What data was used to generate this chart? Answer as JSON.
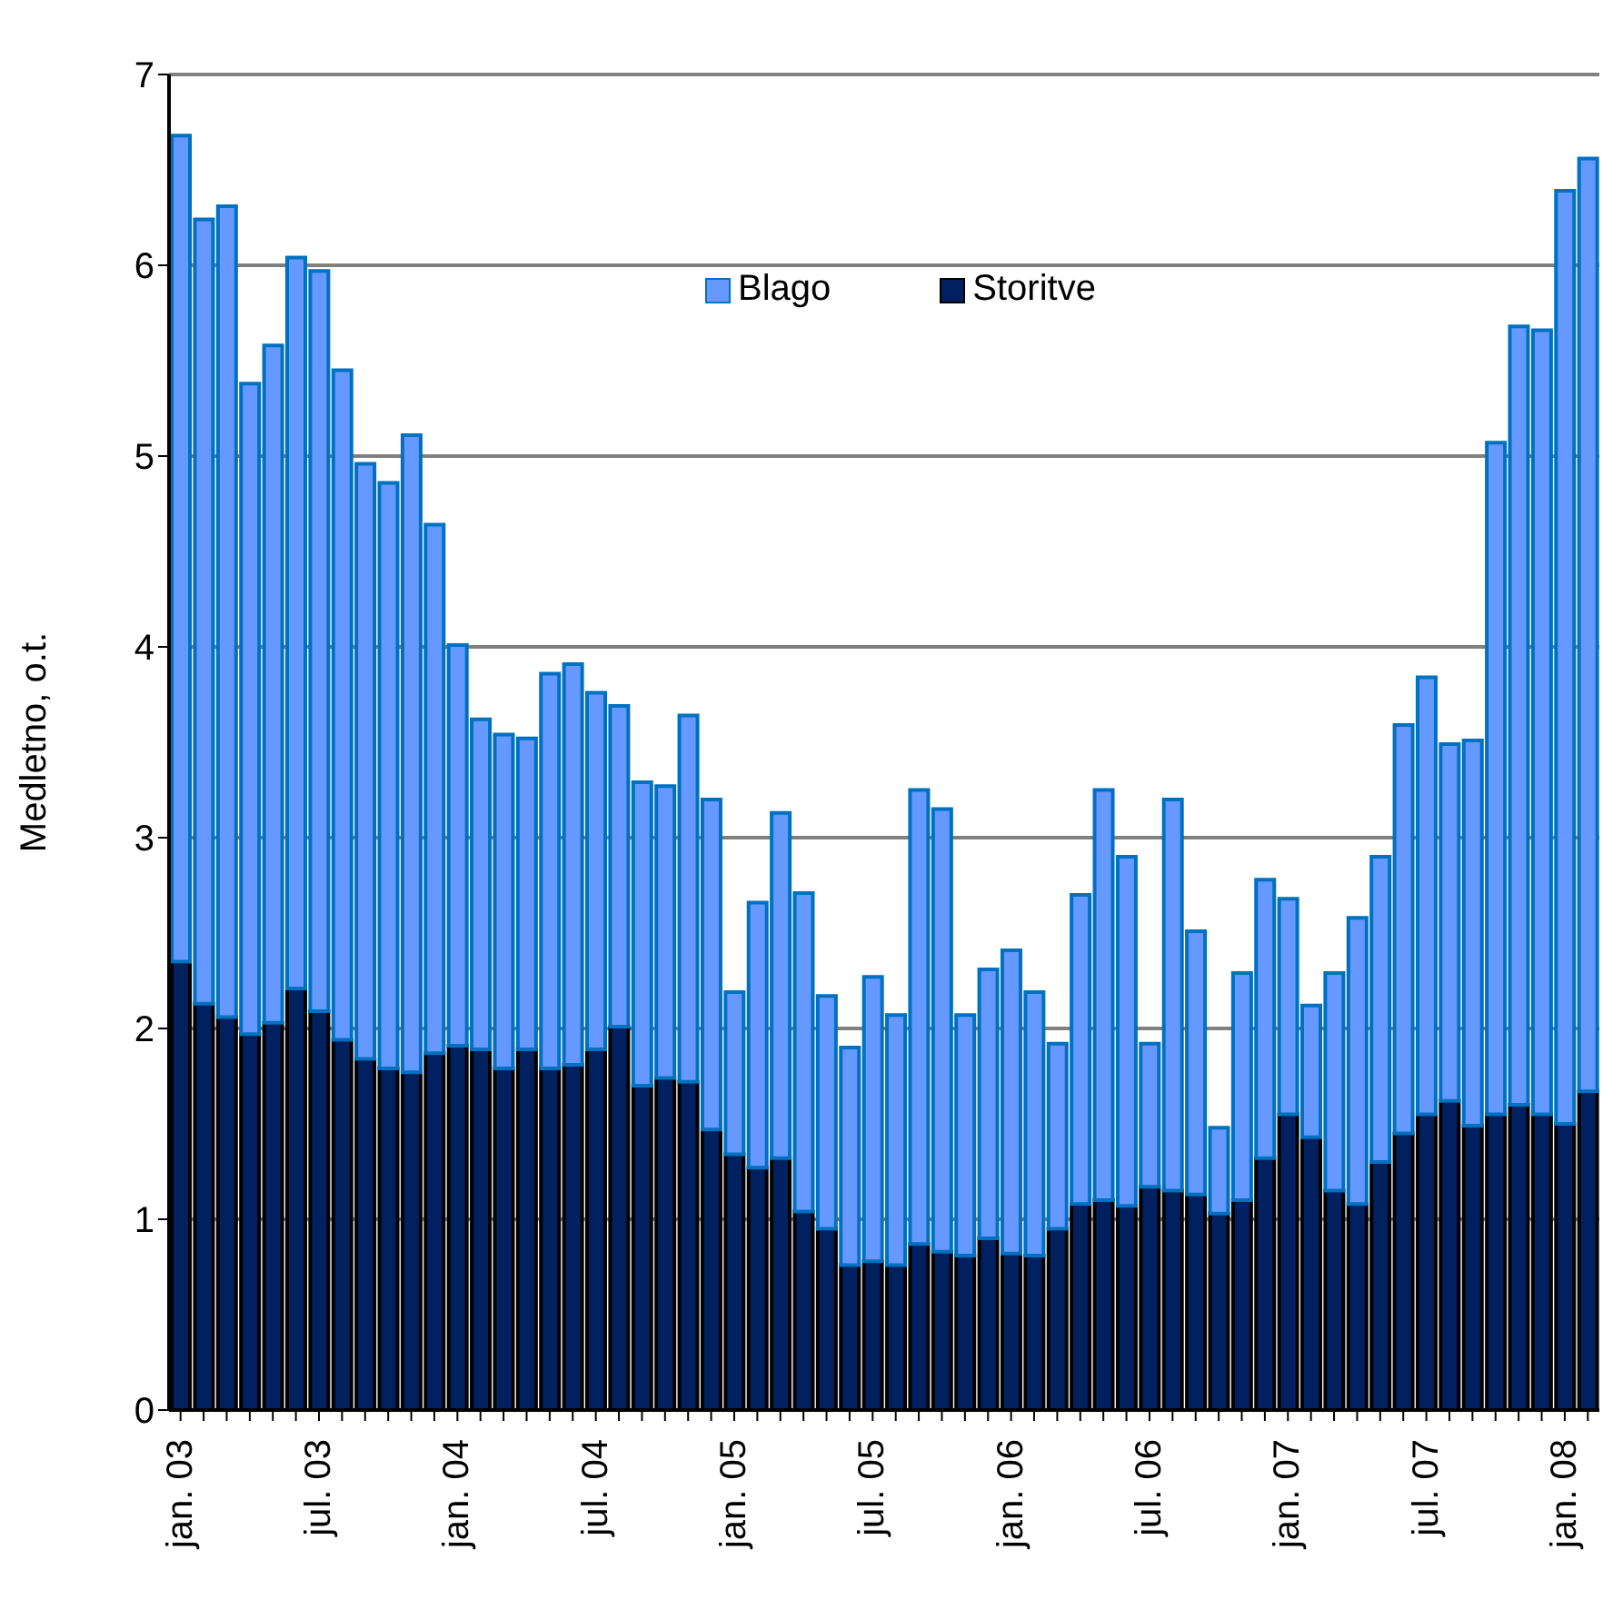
{
  "chart_data": {
    "type": "bar",
    "stacked": true,
    "ylabel": "Medletno, o.t.",
    "categories": [
      "jan. 03",
      null,
      null,
      null,
      null,
      null,
      "jul. 03",
      null,
      null,
      null,
      null,
      null,
      "jan. 04",
      null,
      null,
      null,
      null,
      null,
      "jul. 04",
      null,
      null,
      null,
      null,
      null,
      "jan. 05",
      null,
      null,
      null,
      null,
      null,
      "jul. 05",
      null,
      null,
      null,
      null,
      null,
      "jan. 06",
      null,
      null,
      null,
      null,
      null,
      "jul. 06",
      null,
      null,
      null,
      null,
      null,
      "jan. 07",
      null,
      null,
      null,
      null,
      null,
      "jul. 07",
      null,
      null,
      null,
      null,
      null,
      "jan. 08",
      null
    ],
    "series": [
      {
        "name": "Storitve",
        "color": "#002060",
        "values": [
          2.35,
          2.13,
          2.06,
          1.97,
          2.03,
          2.21,
          2.09,
          1.94,
          1.84,
          1.79,
          1.77,
          1.87,
          1.91,
          1.89,
          1.79,
          1.89,
          1.79,
          1.81,
          1.89,
          2.01,
          1.7,
          1.74,
          1.72,
          1.47,
          1.34,
          1.27,
          1.32,
          1.04,
          0.95,
          0.76,
          0.78,
          0.76,
          0.87,
          0.83,
          0.81,
          0.9,
          0.82,
          0.81,
          0.95,
          1.08,
          1.1,
          1.07,
          1.17,
          1.15,
          1.13,
          1.03,
          1.1,
          1.32,
          1.55,
          1.43,
          1.15,
          1.08,
          1.3,
          1.45,
          1.55,
          1.62,
          1.49,
          1.55,
          1.6,
          1.55,
          1.5,
          1.67
        ]
      },
      {
        "name": "Blago",
        "color": "#6699ff",
        "values": [
          4.33,
          4.11,
          4.25,
          3.41,
          3.55,
          3.83,
          3.88,
          3.51,
          3.12,
          3.07,
          3.34,
          2.77,
          2.1,
          1.73,
          1.75,
          1.63,
          2.07,
          2.1,
          1.87,
          1.68,
          1.59,
          1.53,
          1.92,
          1.73,
          0.85,
          1.39,
          1.81,
          1.67,
          1.22,
          1.14,
          1.49,
          1.31,
          2.38,
          2.32,
          1.26,
          1.41,
          1.59,
          1.38,
          0.97,
          1.62,
          2.15,
          1.83,
          0.75,
          2.05,
          1.38,
          0.45,
          1.19,
          1.46,
          1.13,
          0.69,
          1.14,
          1.5,
          1.6,
          2.14,
          2.29,
          1.87,
          2.02,
          3.52,
          4.08,
          4.11,
          4.89,
          4.89
        ]
      }
    ],
    "ylim": [
      0,
      7
    ],
    "yticks": [
      0,
      1,
      2,
      3,
      4,
      5,
      6,
      7
    ],
    "grid": "y",
    "legend": "top"
  }
}
